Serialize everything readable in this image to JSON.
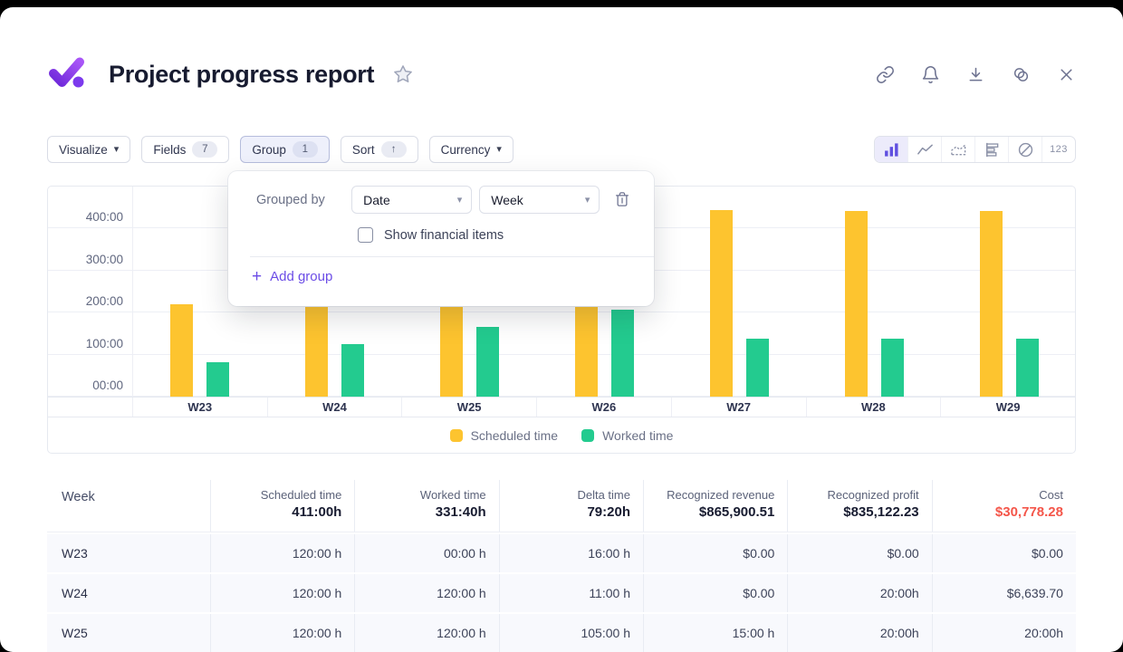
{
  "window": {
    "background": "#000000",
    "card_background": "#FFFFFF"
  },
  "header": {
    "title": "Project progress report",
    "logo_icon": "purple-checkmark-logo",
    "star_icon": "star-outline",
    "action_icons": [
      "link-icon",
      "bell-icon",
      "download-icon",
      "merge-circles-icon",
      "close-icon"
    ]
  },
  "toolbar": {
    "visualize": {
      "label": "Visualize"
    },
    "fields": {
      "label": "Fields",
      "count": "7"
    },
    "group": {
      "label": "Group",
      "count": "1",
      "active": true
    },
    "sort": {
      "label": "Sort",
      "arrow": "↑"
    },
    "currency": {
      "label": "Currency"
    },
    "views": {
      "selected": "bar-chart",
      "items": [
        "bar-chart",
        "line-chart",
        "area-chart",
        "horizontal-bar-chart",
        "pie-chart",
        "numbers"
      ],
      "numeric_label": "123"
    }
  },
  "group_panel": {
    "title": "Grouped by",
    "field_select_value": "Date",
    "interval_select_value": "Week",
    "delete_icon": "trash-icon",
    "checkbox_label": "Show financial items",
    "checkbox_checked": false,
    "add_group_label": "Add group",
    "add_group_plus": "+"
  },
  "chart_data": {
    "type": "bar",
    "categories": [
      "W23",
      "W24",
      "W25",
      "W26",
      "W27",
      "W28",
      "W29"
    ],
    "series": [
      {
        "name": "Scheduled time",
        "color": "#FDC42F",
        "values": [
          220,
          220,
          218,
          218,
          443,
          441,
          441
        ]
      },
      {
        "name": "Worked time",
        "color": "#23CB8F",
        "values": [
          81,
          126,
          165,
          208,
          139,
          139,
          139
        ]
      }
    ],
    "unit": "hours",
    "value_format": "h:mm",
    "y_ticks": [
      {
        "value": 400,
        "label": "400:00"
      },
      {
        "value": 300,
        "label": "300:00"
      },
      {
        "value": 200,
        "label": "200:00"
      },
      {
        "value": 100,
        "label": "100:00"
      },
      {
        "value": 0,
        "label": "00:00"
      }
    ],
    "ylim": [
      0,
      500
    ],
    "grid": "horizontal",
    "legend_position": "bottom"
  },
  "table": {
    "columns": [
      {
        "label": "Week",
        "total": "",
        "align": "left"
      },
      {
        "label": "Scheduled time",
        "total": "411:00h",
        "align": "right"
      },
      {
        "label": "Worked time",
        "total": "331:40h",
        "align": "right"
      },
      {
        "label": "Delta time",
        "total": "79:20h",
        "align": "right"
      },
      {
        "label": "Recognized revenue",
        "total": "$865,900.51",
        "align": "right"
      },
      {
        "label": "Recognized profit",
        "total": "$835,122.23",
        "align": "right"
      },
      {
        "label": "Cost",
        "total": "$30,778.28",
        "align": "right",
        "total_color": "#F4564A"
      }
    ],
    "rows": [
      [
        "W23",
        "120:00 h",
        "00:00 h",
        "16:00 h",
        "$0.00",
        "$0.00",
        "$0.00"
      ],
      [
        "W24",
        "120:00 h",
        "120:00 h",
        "11:00 h",
        "$0.00",
        "20:00h",
        "$6,639.70"
      ],
      [
        "W25",
        "120:00 h",
        "120:00 h",
        "105:00 h",
        "15:00 h",
        "20:00h",
        "20:00h"
      ]
    ],
    "partial_row_visible": true
  },
  "colors": {
    "accent_purple": "#6B4CE6",
    "selected_view_purple": "#6050E0",
    "bar_yellow": "#FDC42F",
    "bar_green": "#23CB8F",
    "cost_red": "#F4564A",
    "grid_line": "#EDEFF5",
    "row_background": "#F8F9FD"
  }
}
